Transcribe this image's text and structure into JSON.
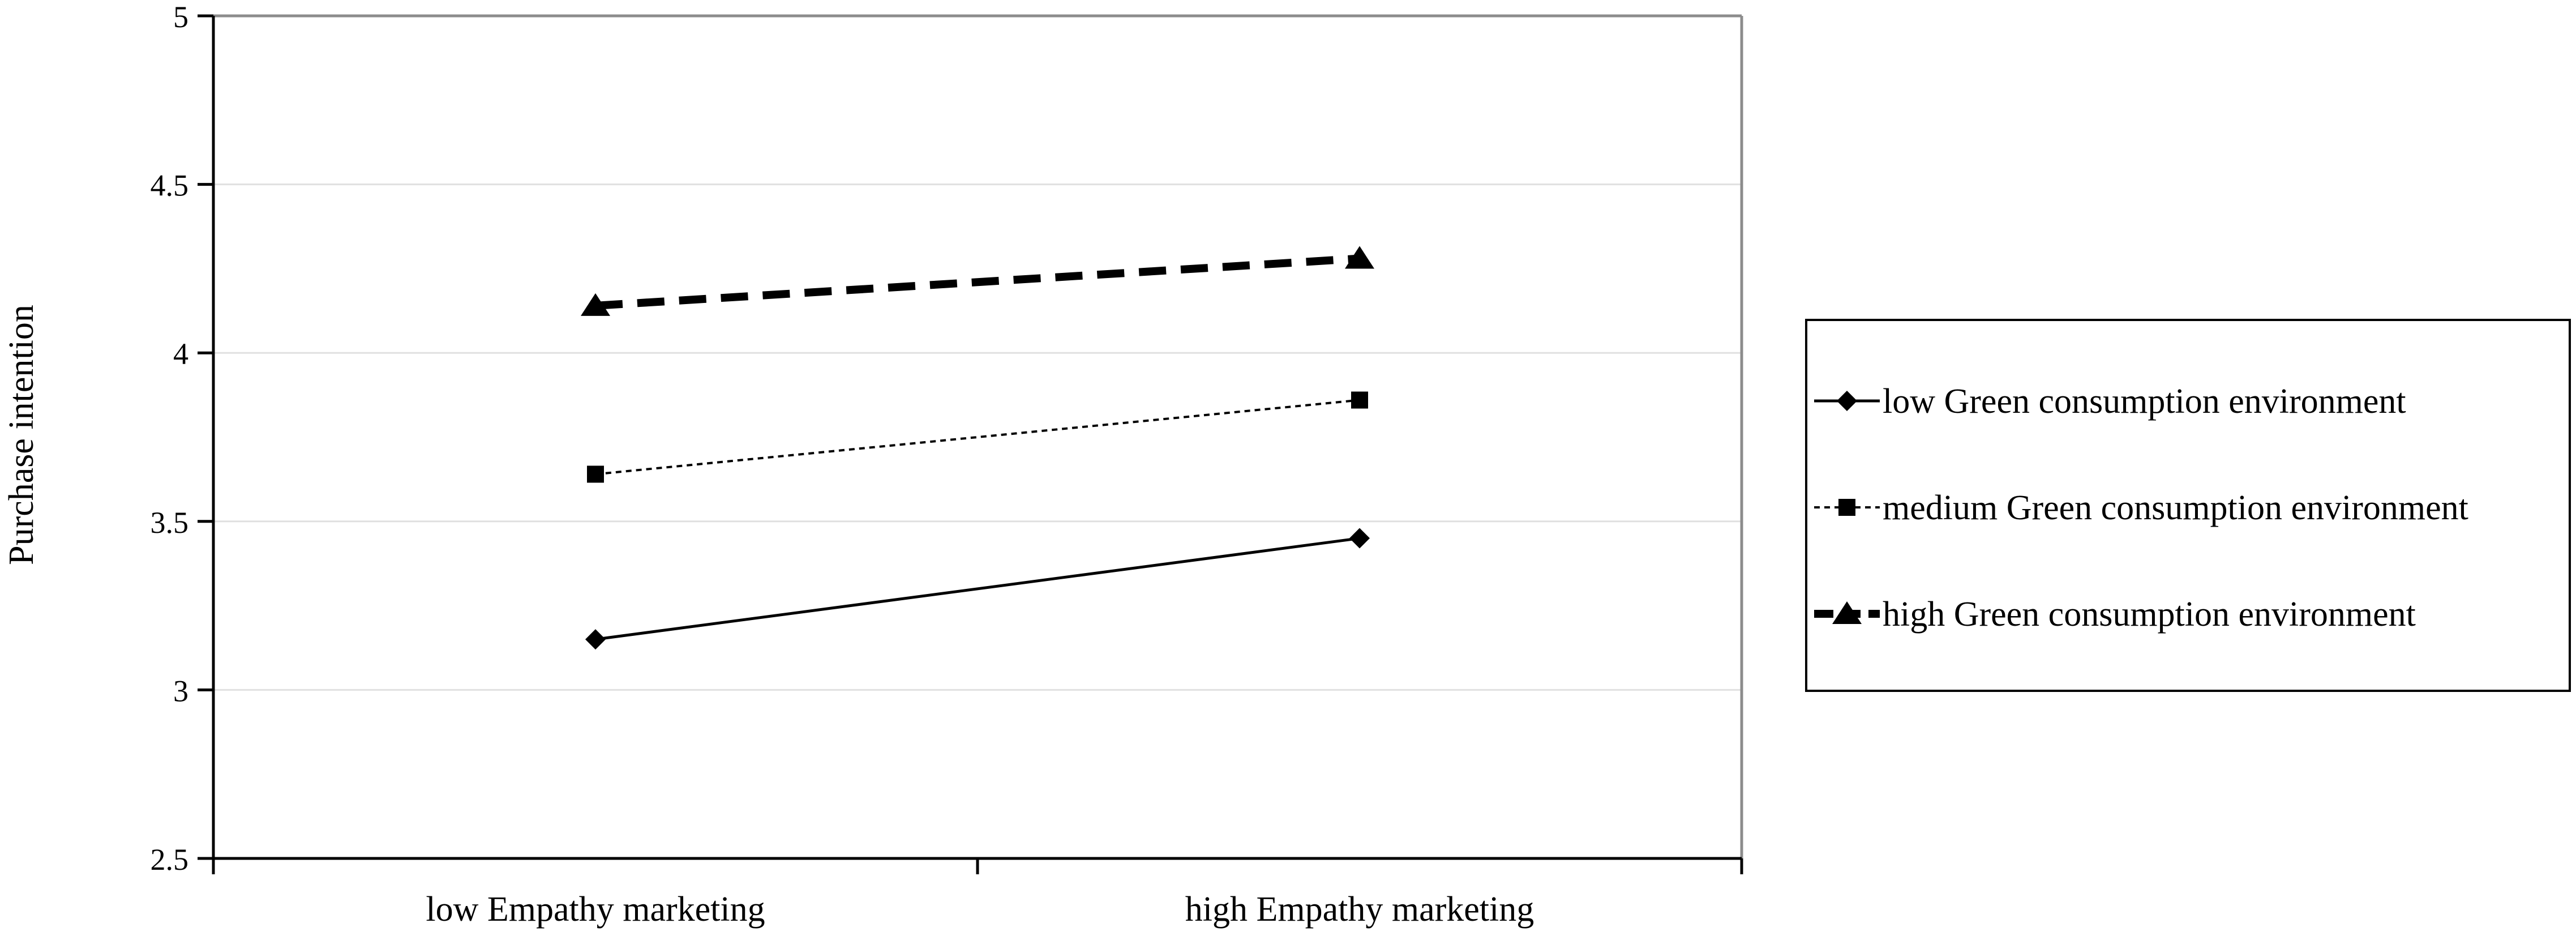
{
  "chart_data": {
    "type": "line",
    "title": "",
    "xlabel": "",
    "ylabel": "Purchase intention",
    "categories": [
      "low Empathy marketing",
      "high Empathy marketing"
    ],
    "ylim": [
      2.5,
      5
    ],
    "yticks": [
      "2.5",
      "3",
      "3.5",
      "4",
      "4.5",
      "5"
    ],
    "ytick_values": [
      2.5,
      3,
      3.5,
      4,
      4.5,
      5
    ],
    "grid": true,
    "legend_position": "right",
    "series": [
      {
        "name": "low Green consumption environment",
        "values": [
          3.15,
          3.45
        ],
        "marker": "diamond",
        "line_style": "solid",
        "color": "#000000"
      },
      {
        "name": "medium Green consumption environment",
        "values": [
          3.64,
          3.86
        ],
        "marker": "square",
        "line_style": "dotted",
        "color": "#000000"
      },
      {
        "name": "high Green consumption environment",
        "values": [
          4.14,
          4.28
        ],
        "marker": "triangle",
        "line_style": "dashed",
        "color": "#000000"
      }
    ]
  }
}
